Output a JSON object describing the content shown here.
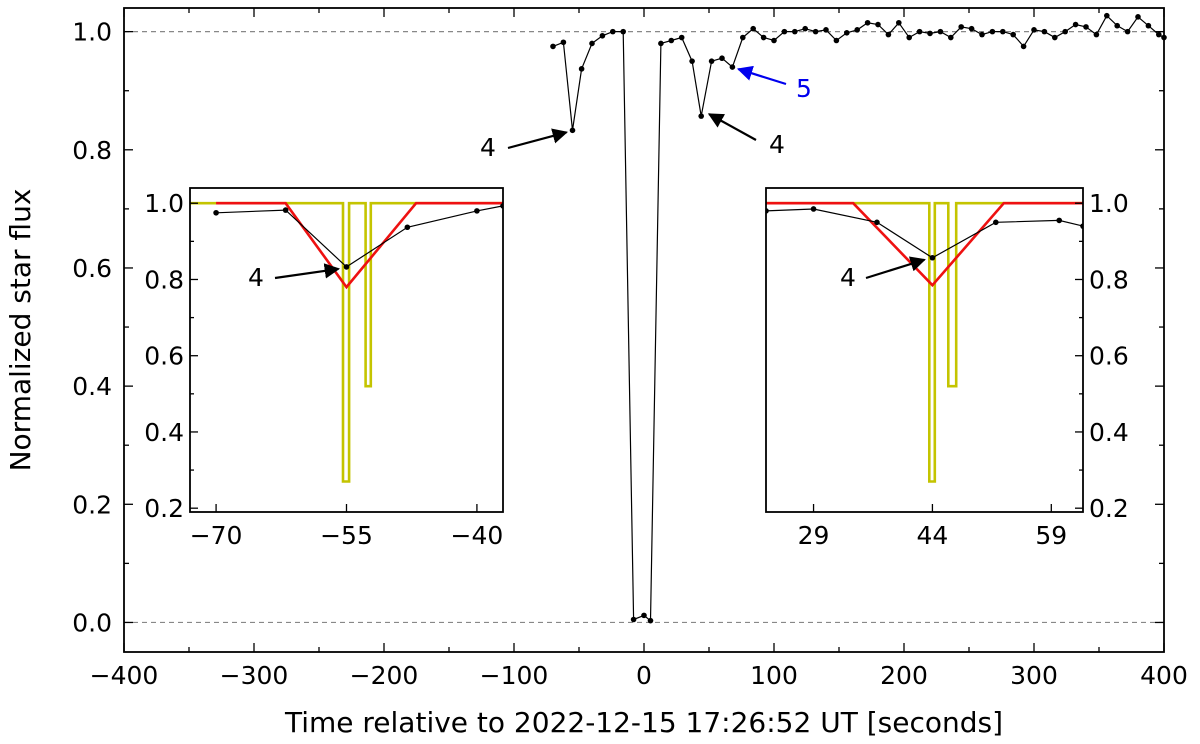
{
  "chart_data": [
    {
      "type": "line",
      "title": "",
      "xlabel": "Time relative to 2022-12-15 17:26:52 UT [seconds]",
      "ylabel": "Normalized star flux",
      "xlim": [
        -400,
        400
      ],
      "ylim": [
        -0.05,
        1.04
      ],
      "x_ticks": [
        -400,
        -300,
        -200,
        -100,
        0,
        100,
        200,
        300,
        400
      ],
      "x_tick_labels": [
        "−400",
        "−300",
        "−200",
        "−100",
        "0",
        "100",
        "200",
        "300",
        "400"
      ],
      "y_ticks": [
        0.0,
        0.2,
        0.4,
        0.6,
        0.8,
        1.0
      ],
      "y_tick_labels": [
        "0.0",
        "0.2",
        "0.4",
        "0.6",
        "0.8",
        "1.0"
      ],
      "reference_lines_y": [
        1.0,
        0.0
      ],
      "grid": false,
      "series": [
        {
          "color": "#000000",
          "x": [
            -70,
            -62,
            -55,
            -48,
            -40,
            -32,
            -24,
            -16,
            -8,
            0,
            5,
            13,
            21,
            29,
            37,
            44,
            52,
            60,
            68,
            76,
            84,
            92,
            100,
            108,
            116,
            124,
            132,
            140,
            148,
            156,
            164,
            172,
            180,
            188,
            196,
            204,
            212,
            220,
            228,
            236,
            244,
            252,
            260,
            268,
            276,
            284,
            292,
            300,
            308,
            316,
            324,
            332,
            340,
            348,
            356,
            364,
            372,
            380,
            388,
            396,
            400
          ],
          "y": [
            0.975,
            0.982,
            0.833,
            0.937,
            0.98,
            0.993,
            1.0,
            1.0,
            0.005,
            0.012,
            0.003,
            0.98,
            0.985,
            0.99,
            0.95,
            0.857,
            0.95,
            0.955,
            0.94,
            0.99,
            1.005,
            0.99,
            0.985,
            1.0,
            1.0,
            1.005,
            1.0,
            1.003,
            0.985,
            0.998,
            1.003,
            1.015,
            1.012,
            0.995,
            1.015,
            0.99,
            1.0,
            0.997,
            1.0,
            0.99,
            1.008,
            1.005,
            0.995,
            1.0,
            1.0,
            0.995,
            0.975,
            1.003,
            1.0,
            0.99,
            1.0,
            1.012,
            1.008,
            0.995,
            1.027,
            1.01,
            1.0,
            1.025,
            1.01,
            0.995,
            0.99
          ]
        }
      ],
      "annotations": [
        {
          "text": "4",
          "color": "#000000",
          "target": [
            -55,
            0.833
          ]
        },
        {
          "text": "4",
          "color": "#000000",
          "target": [
            44,
            0.857
          ]
        },
        {
          "text": "5",
          "color": "#0000ee",
          "target": [
            68,
            0.94
          ]
        }
      ]
    },
    {
      "type": "line",
      "xlim": [
        -73,
        -37
      ],
      "ylim": [
        0.19,
        1.04
      ],
      "x_ticks": [
        -70,
        -55,
        -40
      ],
      "x_tick_labels": [
        "−70",
        "−55",
        "−40"
      ],
      "y_ticks": [
        0.2,
        0.4,
        0.6,
        0.8,
        1.0
      ],
      "y_tick_labels": [
        "0.2",
        "0.4",
        "0.6",
        "0.8",
        "1.0"
      ],
      "series": [
        {
          "color": "#000000",
          "x": [
            -70,
            -62,
            -55,
            -48,
            -40,
            -37
          ],
          "y": [
            0.975,
            0.982,
            0.833,
            0.937,
            0.98,
            0.993
          ]
        },
        {
          "color": "#ee1111",
          "x": [
            -70,
            -62,
            -55,
            -47,
            -37
          ],
          "y": [
            1.0,
            1.0,
            0.78,
            1.0,
            1.0
          ]
        },
        {
          "color": "#c4c400",
          "x": [
            -73,
            -55.4,
            -55.4,
            -54.7,
            -54.7,
            -54.2,
            -54.2,
            -52.8,
            -52.8,
            -52.2,
            -52.2,
            -37
          ],
          "y": [
            1.0,
            1.0,
            0.27,
            0.27,
            1.0,
            1.0,
            1.0,
            1.0,
            0.52,
            0.52,
            1.0,
            1.0
          ]
        }
      ],
      "annotations": [
        {
          "text": "4",
          "color": "#000000",
          "target": [
            -55,
            0.833
          ]
        }
      ]
    },
    {
      "type": "line",
      "xlim": [
        23,
        63
      ],
      "ylim": [
        0.19,
        1.04
      ],
      "x_ticks": [
        29,
        44,
        59
      ],
      "x_tick_labels": [
        "29",
        "44",
        "59"
      ],
      "y_ticks": [
        0.2,
        0.4,
        0.6,
        0.8,
        1.0
      ],
      "y_tick_labels": [
        "0.2",
        "0.4",
        "0.6",
        "0.8",
        "1.0"
      ],
      "series": [
        {
          "color": "#000000",
          "x": [
            23,
            29,
            37,
            44,
            52,
            60,
            63
          ],
          "y": [
            0.98,
            0.985,
            0.95,
            0.857,
            0.95,
            0.955,
            0.94
          ]
        },
        {
          "color": "#ee1111",
          "x": [
            23,
            34,
            44,
            53,
            63
          ],
          "y": [
            1.0,
            1.0,
            0.785,
            1.0,
            1.0
          ]
        },
        {
          "color": "#c4c400",
          "x": [
            23,
            43.6,
            43.6,
            44.3,
            44.3,
            45,
            45,
            46,
            46,
            47,
            47,
            63
          ],
          "y": [
            1.0,
            1.0,
            0.27,
            0.27,
            1.0,
            1.0,
            1.0,
            1.0,
            0.52,
            0.52,
            1.0,
            1.0
          ]
        }
      ],
      "annotations": [
        {
          "text": "4",
          "color": "#000000",
          "target": [
            44,
            0.857
          ]
        }
      ]
    }
  ]
}
